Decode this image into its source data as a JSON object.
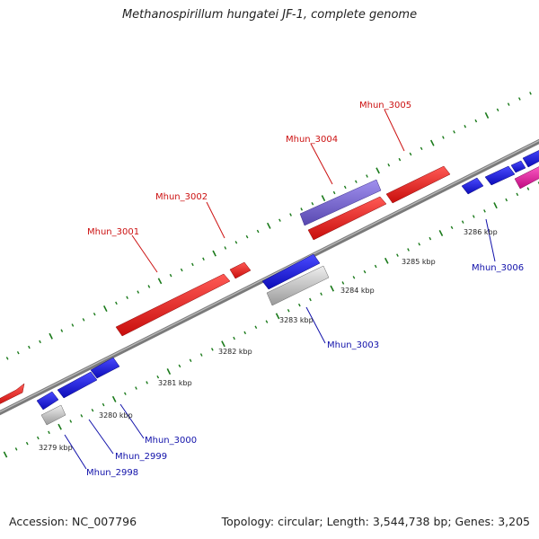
{
  "title": "Methanospirillum hungatei JF-1, complete genome",
  "footer": {
    "accession": "Accession: NC_007796",
    "meta": "Topology: circular; Length: 3,544,738 bp; Genes: 3,205"
  },
  "colors": {
    "top_strand": "#e8201e",
    "bottom_strand": "#1a1ae0",
    "gray_gene": "#bdbdbd",
    "purple_gene": "#7060c8",
    "pink_gene": "#e8189c",
    "ruler_ticks": "#1a7a1a",
    "top_label": "#cc1111",
    "bottom_label": "#1111aa"
  },
  "kbp_labels": [
    "3279 kbp",
    "3280 kbp",
    "3281 kbp",
    "3282 kbp",
    "3283 kbp",
    "3284 kbp",
    "3285 kbp",
    "3286 kbp"
  ],
  "gene_labels": [
    {
      "text": "Mhun_3001",
      "side": "top"
    },
    {
      "text": "Mhun_3002",
      "side": "top"
    },
    {
      "text": "Mhun_3004",
      "side": "top"
    },
    {
      "text": "Mhun_3005",
      "side": "top"
    },
    {
      "text": "Mhun_2998",
      "side": "bottom"
    },
    {
      "text": "Mhun_2999",
      "side": "bottom"
    },
    {
      "text": "Mhun_3000",
      "side": "bottom"
    },
    {
      "text": "Mhun_3003",
      "side": "bottom"
    },
    {
      "text": "Mhun_3006",
      "side": "bottom"
    }
  ]
}
